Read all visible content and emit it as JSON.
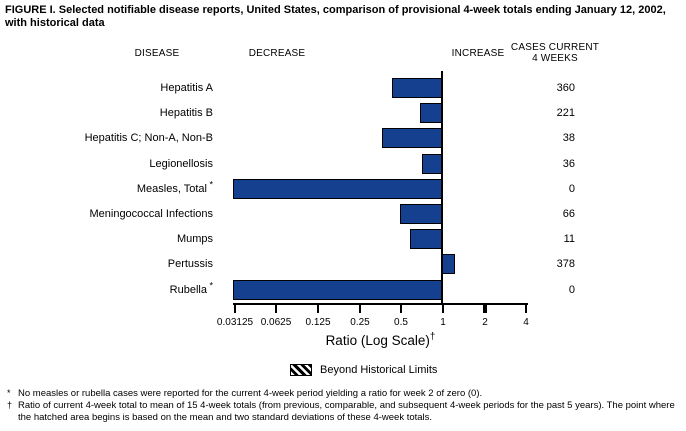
{
  "title": "FIGURE I. Selected notifiable disease reports, United States, comparison of provisional 4-week totals ending January 12, 2002, with historical data",
  "columns": {
    "disease": "DISEASE",
    "decrease": "DECREASE",
    "increase": "INCREASE",
    "cases_line1": "CASES CURRENT",
    "cases_line2": "4 WEEKS"
  },
  "chart_data": {
    "type": "bar",
    "orientation": "horizontal",
    "x_scale": "log2",
    "baseline": 1,
    "xlabel": "Ratio (Log Scale)",
    "xlabel_sup": "†",
    "x_ticks": [
      0.03125,
      0.0625,
      0.125,
      0.25,
      0.5,
      1,
      2,
      4
    ],
    "x_tick_labels": [
      "0.03125",
      "0.0625",
      "0.125",
      "0.25",
      "0.5",
      "1",
      "2",
      "4"
    ],
    "xlim": [
      0.03125,
      4
    ],
    "bar_color": "#14408F",
    "note": "ratio 0 bars are drawn clipped to the left edge of the axis",
    "rows": [
      {
        "label": "Hepatitis A",
        "sup": "",
        "ratio": 0.43,
        "cases": "360"
      },
      {
        "label": "Hepatitis B",
        "sup": "",
        "ratio": 0.68,
        "cases": "221"
      },
      {
        "label": "Hepatitis C; Non-A, Non-B",
        "sup": "",
        "ratio": 0.36,
        "cases": "38"
      },
      {
        "label": "Legionellosis",
        "sup": "",
        "ratio": 0.71,
        "cases": "36"
      },
      {
        "label": "Measles, Total",
        "sup": "*",
        "ratio": 0,
        "cases": "0"
      },
      {
        "label": "Meningococcal Infections",
        "sup": "",
        "ratio": 0.49,
        "cases": "66"
      },
      {
        "label": "Mumps",
        "sup": "",
        "ratio": 0.58,
        "cases": "11"
      },
      {
        "label": "Pertussis",
        "sup": "",
        "ratio": 1.22,
        "cases": "378"
      },
      {
        "label": "Rubella",
        "sup": "*",
        "ratio": 0,
        "cases": "0"
      }
    ]
  },
  "legend": {
    "label": "Beyond Historical Limits"
  },
  "footnotes": [
    {
      "symbol": "*",
      "text": "No measles or rubella cases were reported for the current 4-week period yielding a ratio for week 2 of zero (0)."
    },
    {
      "symbol": "†",
      "text": "Ratio of current 4-week total to mean of 15 4-week totals (from previous, comparable, and subsequent 4-week periods for the past 5 years). The point where the hatched area begins is based on the mean and two standard deviations of these 4-week totals."
    }
  ]
}
